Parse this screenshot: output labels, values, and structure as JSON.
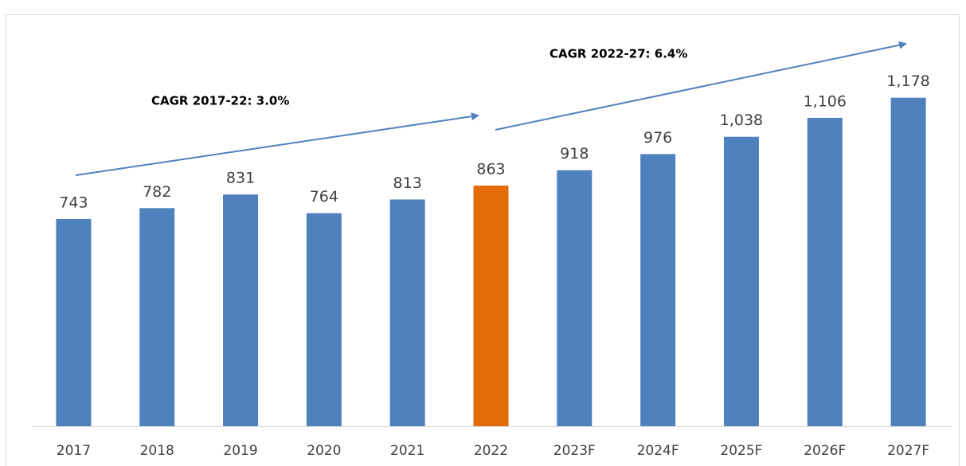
{
  "chart_data": {
    "type": "bar",
    "categories": [
      "2017",
      "2018",
      "2019",
      "2020",
      "2021",
      "2022",
      "2023F",
      "2024F",
      "2025F",
      "2026F",
      "2027F"
    ],
    "values": [
      743,
      782,
      831,
      764,
      813,
      863,
      918,
      976,
      1038,
      1106,
      1178
    ],
    "value_labels": [
      "743",
      "782",
      "831",
      "764",
      "813",
      "863",
      "918",
      "976",
      "1,038",
      "1,106",
      "1,178"
    ],
    "colors": [
      "#4f81bd",
      "#4f81bd",
      "#4f81bd",
      "#4f81bd",
      "#4f81bd",
      "#e36c09",
      "#4f81bd",
      "#4f81bd",
      "#4f81bd",
      "#4f81bd",
      "#4f81bd"
    ],
    "ylim": [
      0,
      1400
    ],
    "annotations": [
      "CAGR 2017-22: 3.0%",
      "CAGR 2022-27: 6.4%"
    ]
  }
}
